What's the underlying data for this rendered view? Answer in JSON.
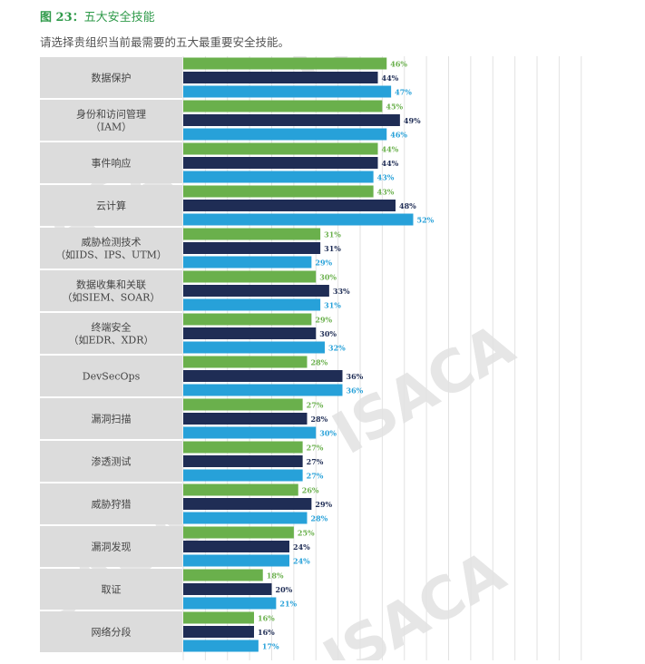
{
  "figure": {
    "number": "图 23",
    "separator": "：",
    "name": "五大安全技能",
    "question": "请选择贵组织当前最需要的五大最重要安全技能。"
  },
  "watermark": "ISACA",
  "colors": {
    "series1": "#6ab04c",
    "series2": "#1f2d55",
    "series3": "#27a1d9",
    "label_bg": "#dcdcdc",
    "grid": "#e2e2e2"
  },
  "chart_data": {
    "type": "bar",
    "orientation": "horizontal",
    "grid": true,
    "categories": [
      [
        "数据保护"
      ],
      [
        "身份和访问管理",
        "（IAM）"
      ],
      [
        "事件响应"
      ],
      [
        "云计算"
      ],
      [
        "威胁检测技术",
        "（如IDS、IPS、UTM）"
      ],
      [
        "数据收集和关联",
        "（如SIEM、SOAR）"
      ],
      [
        "终端安全",
        "（如EDR、XDR）"
      ],
      [
        "DevSecOps"
      ],
      [
        "漏洞扫描"
      ],
      [
        "渗透测试"
      ],
      [
        "威胁狩猎"
      ],
      [
        "漏洞发现"
      ],
      [
        "取证"
      ],
      [
        "网络分段"
      ]
    ],
    "series": [
      {
        "values": [
          46,
          45,
          44,
          43,
          31,
          30,
          29,
          28,
          27,
          27,
          26,
          25,
          18,
          16
        ]
      },
      {
        "values": [
          44,
          49,
          44,
          48,
          31,
          33,
          30,
          36,
          28,
          27,
          29,
          24,
          20,
          16
        ]
      },
      {
        "values": [
          47,
          46,
          43,
          52,
          29,
          31,
          32,
          36,
          30,
          27,
          28,
          24,
          21,
          17
        ]
      }
    ],
    "value_suffix": "%",
    "xlim": [
      0,
      90
    ]
  }
}
